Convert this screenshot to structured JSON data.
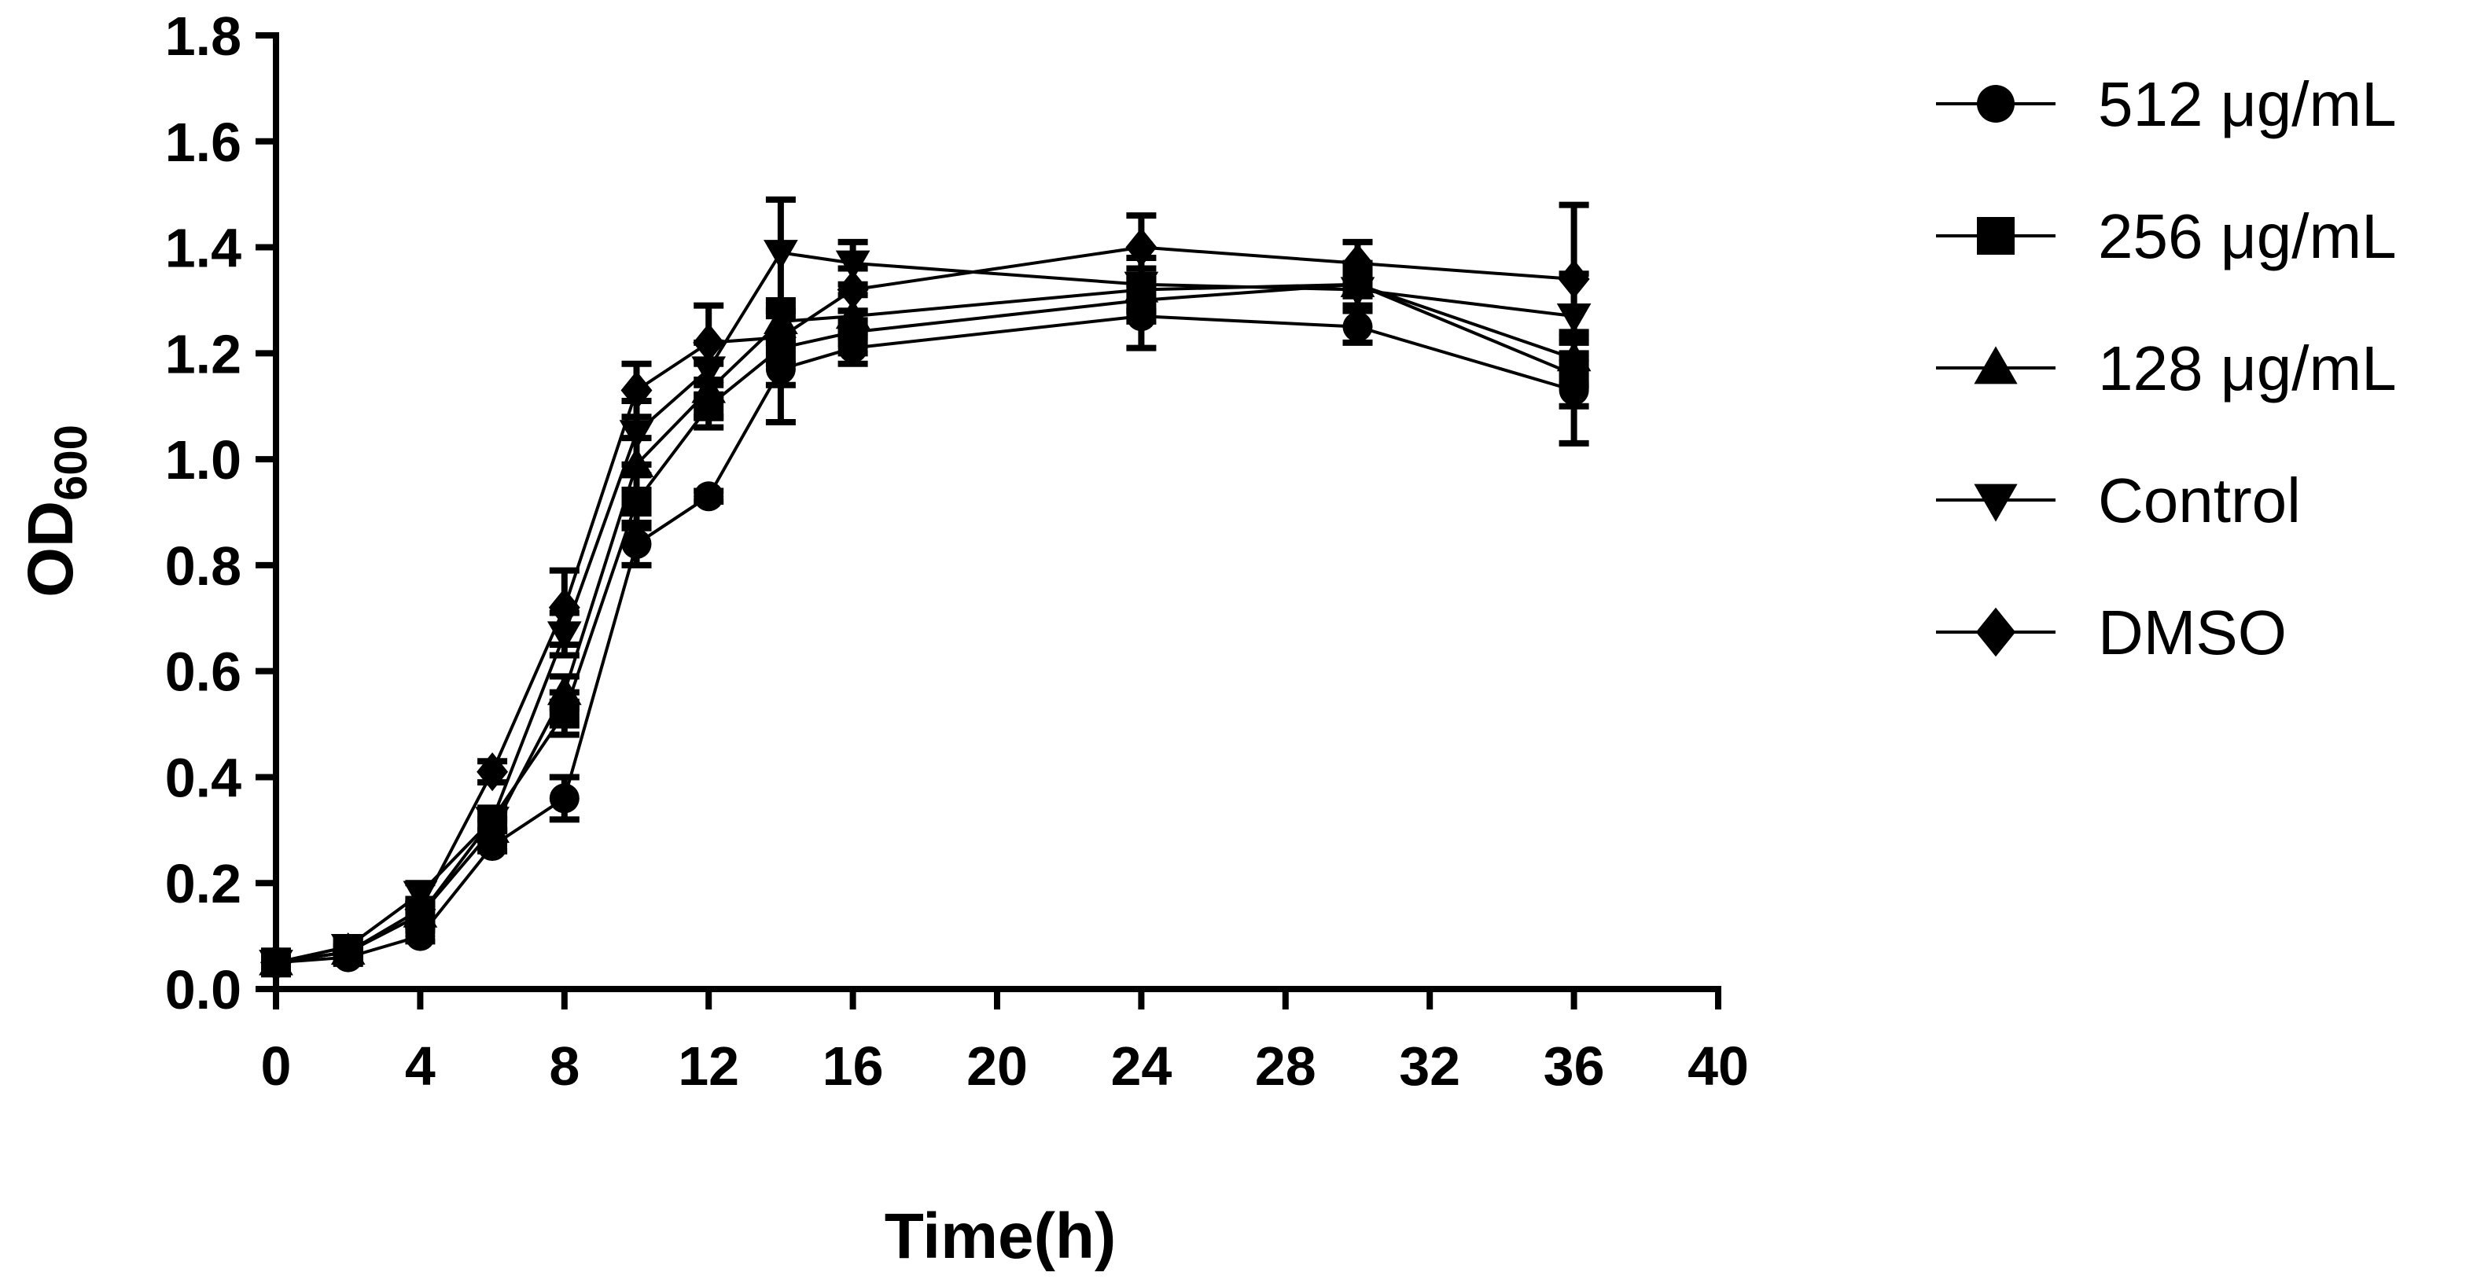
{
  "chart_data": {
    "type": "line",
    "xlabel": "Time(h)",
    "ylabel": {
      "main": "OD",
      "sub": "600"
    },
    "xlim": [
      0,
      40
    ],
    "ylim": [
      0.0,
      1.8
    ],
    "xticks": [
      0,
      4,
      8,
      12,
      16,
      20,
      24,
      28,
      32,
      36,
      40
    ],
    "xtick_labels": [
      "0",
      "4",
      "8",
      "12",
      "16",
      "20",
      "24",
      "28",
      "32",
      "36",
      "40"
    ],
    "yticks": [
      0.0,
      0.2,
      0.4,
      0.6,
      0.8,
      1.0,
      1.2,
      1.4,
      1.6,
      1.8
    ],
    "ytick_labels": [
      "0.0",
      "0.2",
      "0.4",
      "0.6",
      "0.8",
      "1.0",
      "1.2",
      "1.4",
      "1.6",
      "1.8"
    ],
    "grid": false,
    "legend_position": "right",
    "x": [
      0,
      2,
      4,
      6,
      8,
      10,
      12,
      14,
      16,
      24,
      30,
      36
    ],
    "series": [
      {
        "name": "512 μg/mL",
        "marker": "circle",
        "values": [
          0.05,
          0.06,
          0.1,
          0.27,
          0.36,
          0.84,
          0.93,
          1.17,
          1.21,
          1.27,
          1.25,
          1.13
        ],
        "errors": [
          0.01,
          0.01,
          0.01,
          0.01,
          0.04,
          0.04,
          0.01,
          0.1,
          0.03,
          0.06,
          0.03,
          0.1
        ]
      },
      {
        "name": "256 μg/mL",
        "marker": "square",
        "values": [
          0.05,
          0.07,
          0.14,
          0.32,
          0.52,
          0.92,
          1.1,
          1.21,
          1.24,
          1.3,
          1.33,
          1.16
        ],
        "errors": [
          0.01,
          0.01,
          0.02,
          0.02,
          0.04,
          0.05,
          0.04,
          0.07,
          0.04,
          0.04,
          0.04,
          0.06
        ]
      },
      {
        "name": "128 μg/mL",
        "marker": "triangle-up",
        "values": [
          0.05,
          0.07,
          0.14,
          0.3,
          0.56,
          0.99,
          1.13,
          1.26,
          1.27,
          1.32,
          1.33,
          1.19
        ],
        "errors": [
          0.01,
          0.01,
          0.02,
          0.02,
          0.03,
          0.05,
          0.05,
          0.04,
          0.04,
          0.04,
          0.04,
          0.05
        ]
      },
      {
        "name": "Control",
        "marker": "triangle-down",
        "values": [
          0.05,
          0.08,
          0.18,
          0.32,
          0.67,
          1.05,
          1.17,
          1.39,
          1.37,
          1.33,
          1.32,
          1.27
        ],
        "errors": [
          0.01,
          0.01,
          0.02,
          0.02,
          0.04,
          0.06,
          0.05,
          0.1,
          0.04,
          0.05,
          0.04,
          0.08
        ]
      },
      {
        "name": "DMSO",
        "marker": "diamond",
        "values": [
          0.05,
          0.07,
          0.15,
          0.41,
          0.72,
          1.13,
          1.22,
          1.23,
          1.32,
          1.4,
          1.37,
          1.34
        ],
        "errors": [
          0.01,
          0.01,
          0.02,
          0.02,
          0.07,
          0.05,
          0.07,
          0.05,
          0.04,
          0.06,
          0.04,
          0.14
        ]
      }
    ]
  }
}
